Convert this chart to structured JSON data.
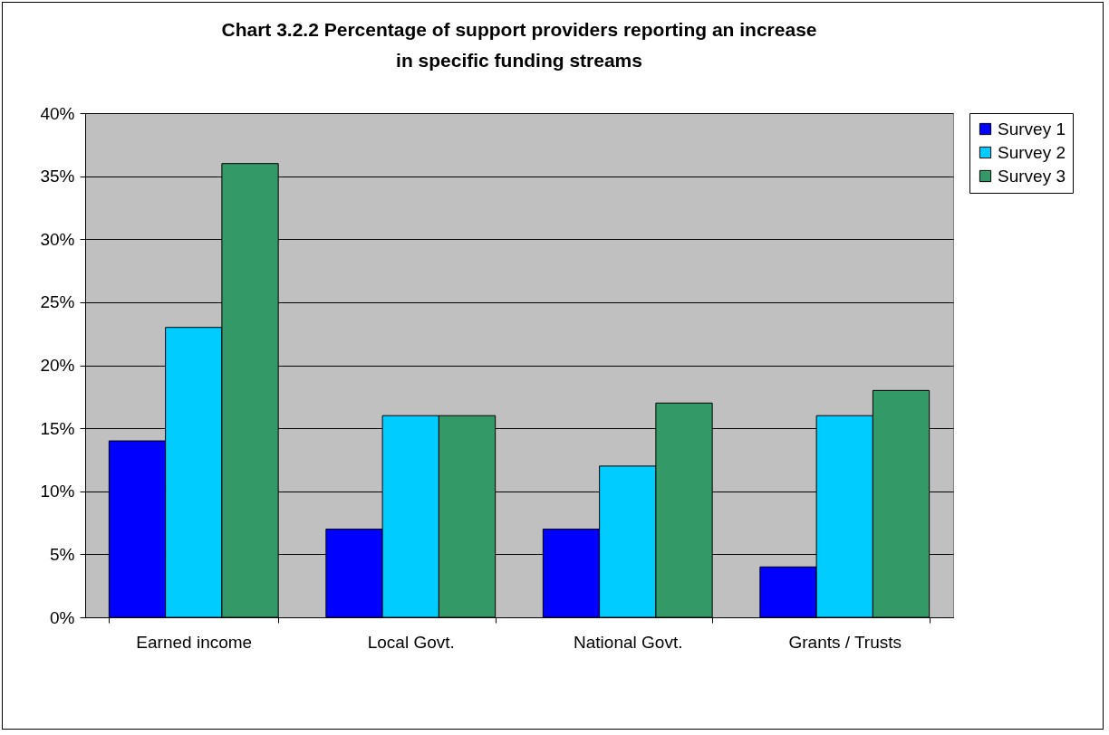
{
  "chart_data": {
    "type": "bar",
    "title": "Chart 3.2.2 Percentage of support providers reporting an increase in specific funding streams",
    "categories": [
      "Earned income",
      "Local Govt.",
      "National Govt.",
      "Grants / Trusts"
    ],
    "series": [
      {
        "name": "Survey 1",
        "color": "#0000ff",
        "values": [
          14,
          7,
          7,
          4
        ]
      },
      {
        "name": "Survey 2",
        "color": "#00ccff",
        "values": [
          23,
          16,
          12,
          16
        ]
      },
      {
        "name": "Survey 3",
        "color": "#339966",
        "values": [
          36,
          16,
          17,
          18
        ]
      }
    ],
    "ylim": [
      0,
      40
    ],
    "yticks": [
      {
        "value": 0,
        "label": "0%"
      },
      {
        "value": 5,
        "label": "5%"
      },
      {
        "value": 10,
        "label": "10%"
      },
      {
        "value": 15,
        "label": "15%"
      },
      {
        "value": 20,
        "label": "20%"
      },
      {
        "value": 25,
        "label": "25%"
      },
      {
        "value": 30,
        "label": "30%"
      },
      {
        "value": 35,
        "label": "35%"
      },
      {
        "value": 40,
        "label": "40%"
      }
    ],
    "grid": "y",
    "legend": "right"
  }
}
